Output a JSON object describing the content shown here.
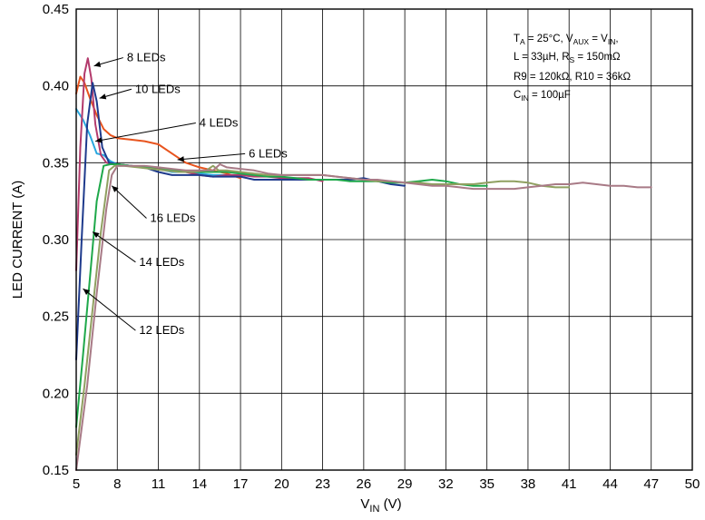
{
  "chart_data": {
    "type": "line",
    "title": "",
    "xlabel": "V",
    "xlabel_sub": "IN",
    "xlabel_unit": " (V)",
    "ylabel": "LED CURRENT (A)",
    "xlim": [
      5,
      50
    ],
    "ylim": [
      0.15,
      0.45
    ],
    "x_ticks": [
      "5",
      "8",
      "11",
      "14",
      "17",
      "20",
      "23",
      "26",
      "29",
      "32",
      "35",
      "38",
      "41",
      "44",
      "47",
      "50"
    ],
    "y_ticks": [
      "0.15",
      "0.20",
      "0.25",
      "0.30",
      "0.35",
      "0.40",
      "0.45"
    ],
    "grid": true,
    "conditions": {
      "line1": {
        "a": "T",
        "a_sub": "A",
        "b": " = 25°C, V",
        "b_sub": "AUX",
        "c": " = V",
        "c_sub": "IN",
        "d": ","
      },
      "line2": {
        "a": "L = 33µH, R",
        "a_sub": "S",
        "b": " = 150mΩ"
      },
      "line3": {
        "a": "R9 = 120kΩ, R10 = 36kΩ"
      },
      "line4": {
        "a": "C",
        "a_sub": "IN",
        "b": " = 100µF"
      }
    },
    "series": [
      {
        "name": "4 LEDs",
        "color": "#2aa7df",
        "label_x": 14.0,
        "label_y": 0.3735,
        "arrow_to_x": 6.4,
        "arrow_to_y": 0.364,
        "points": [
          [
            5.0,
            0.385
          ],
          [
            5.5,
            0.378
          ],
          [
            6.0,
            0.368
          ],
          [
            6.5,
            0.356
          ],
          [
            7.0,
            0.355
          ],
          [
            7.5,
            0.351
          ],
          [
            8.0,
            0.349
          ],
          [
            9.0,
            0.348
          ],
          [
            10.0,
            0.347
          ],
          [
            11.0,
            0.346
          ],
          [
            12.0,
            0.344
          ],
          [
            13.0,
            0.344
          ],
          [
            14.0,
            0.343
          ],
          [
            15.0,
            0.342
          ],
          [
            16.0,
            0.342
          ]
        ]
      },
      {
        "name": "6 LEDs",
        "color": "#e8541e",
        "label_x": 17.6,
        "label_y": 0.3535,
        "arrow_to_x": 12.4,
        "arrow_to_y": 0.352,
        "points": [
          [
            5.0,
            0.395
          ],
          [
            5.3,
            0.406
          ],
          [
            5.6,
            0.402
          ],
          [
            6.0,
            0.392
          ],
          [
            6.5,
            0.381
          ],
          [
            7.0,
            0.372
          ],
          [
            7.5,
            0.368
          ],
          [
            8.0,
            0.366
          ],
          [
            9.0,
            0.365
          ],
          [
            10.0,
            0.364
          ],
          [
            11.0,
            0.362
          ],
          [
            12.0,
            0.356
          ],
          [
            13.0,
            0.35
          ],
          [
            14.0,
            0.347
          ],
          [
            15.0,
            0.345
          ],
          [
            16.0,
            0.343
          ],
          [
            17.0,
            0.34
          ]
        ]
      },
      {
        "name": "8 LEDs",
        "color": "#b33a6c",
        "label_x": 8.7,
        "label_y": 0.416,
        "arrow_to_x": 6.3,
        "arrow_to_y": 0.413,
        "points": [
          [
            5.0,
            0.28
          ],
          [
            5.3,
            0.36
          ],
          [
            5.6,
            0.408
          ],
          [
            5.85,
            0.418
          ],
          [
            6.1,
            0.405
          ],
          [
            6.4,
            0.375
          ],
          [
            6.8,
            0.355
          ],
          [
            7.2,
            0.35
          ],
          [
            8.0,
            0.349
          ],
          [
            9.0,
            0.348
          ],
          [
            10.0,
            0.347
          ],
          [
            11.0,
            0.346
          ],
          [
            12.0,
            0.345
          ],
          [
            13.0,
            0.344
          ],
          [
            14.0,
            0.342
          ],
          [
            15.0,
            0.341
          ],
          [
            16.0,
            0.342
          ],
          [
            17.0,
            0.342
          ],
          [
            18.0,
            0.341
          ],
          [
            19.0,
            0.341
          ],
          [
            20.0,
            0.34
          ],
          [
            21.0,
            0.34
          ],
          [
            22.0,
            0.34
          ],
          [
            23.0,
            0.338
          ]
        ]
      },
      {
        "name": "10 LEDs",
        "color": "#1e3a8c",
        "label_x": 9.3,
        "label_y": 0.3955,
        "arrow_to_x": 6.7,
        "arrow_to_y": 0.392,
        "points": [
          [
            5.0,
            0.222
          ],
          [
            5.4,
            0.3
          ],
          [
            5.8,
            0.375
          ],
          [
            6.2,
            0.402
          ],
          [
            6.5,
            0.39
          ],
          [
            6.9,
            0.36
          ],
          [
            7.4,
            0.35
          ],
          [
            8.0,
            0.349
          ],
          [
            9.0,
            0.348
          ],
          [
            10.0,
            0.347
          ],
          [
            11.0,
            0.344
          ],
          [
            12.0,
            0.342
          ],
          [
            13.0,
            0.342
          ],
          [
            14.0,
            0.342
          ],
          [
            15.0,
            0.341
          ],
          [
            16.0,
            0.341
          ],
          [
            17.0,
            0.341
          ],
          [
            18.0,
            0.339
          ],
          [
            19.0,
            0.339
          ],
          [
            20.0,
            0.339
          ],
          [
            21.0,
            0.339
          ],
          [
            22.0,
            0.339
          ],
          [
            23.0,
            0.339
          ],
          [
            24.0,
            0.339
          ],
          [
            25.0,
            0.339
          ],
          [
            26.0,
            0.34
          ],
          [
            27.0,
            0.338
          ],
          [
            28.0,
            0.336
          ],
          [
            29.0,
            0.335
          ]
        ]
      },
      {
        "name": "12 LEDs",
        "color": "#1ea84a",
        "label_x": 9.6,
        "label_y": 0.2385,
        "arrow_to_x": 5.5,
        "arrow_to_y": 0.268,
        "points": [
          [
            5.0,
            0.178
          ],
          [
            5.5,
            0.225
          ],
          [
            6.0,
            0.275
          ],
          [
            6.5,
            0.325
          ],
          [
            7.0,
            0.348
          ],
          [
            7.5,
            0.349
          ],
          [
            8.0,
            0.349
          ],
          [
            9.0,
            0.348
          ],
          [
            10.0,
            0.347
          ],
          [
            11.0,
            0.347
          ],
          [
            12.0,
            0.345
          ],
          [
            13.0,
            0.344
          ],
          [
            14.0,
            0.344
          ],
          [
            15.0,
            0.344
          ],
          [
            16.0,
            0.344
          ],
          [
            17.0,
            0.343
          ],
          [
            18.0,
            0.342
          ],
          [
            19.0,
            0.341
          ],
          [
            20.0,
            0.341
          ],
          [
            21.0,
            0.34
          ],
          [
            22.0,
            0.339
          ],
          [
            23.0,
            0.339
          ],
          [
            24.0,
            0.339
          ],
          [
            25.0,
            0.338
          ],
          [
            26.0,
            0.338
          ],
          [
            27.0,
            0.338
          ],
          [
            28.0,
            0.337
          ],
          [
            29.0,
            0.337
          ],
          [
            30.0,
            0.338
          ],
          [
            31.0,
            0.339
          ],
          [
            32.0,
            0.338
          ],
          [
            33.0,
            0.336
          ],
          [
            34.0,
            0.335
          ],
          [
            35.0,
            0.335
          ]
        ]
      },
      {
        "name": "14 LEDs",
        "color": "#8fa060",
        "label_x": 9.6,
        "label_y": 0.283,
        "arrow_to_x": 6.2,
        "arrow_to_y": 0.305,
        "points": [
          [
            5.0,
            0.16
          ],
          [
            5.6,
            0.205
          ],
          [
            6.2,
            0.255
          ],
          [
            6.8,
            0.305
          ],
          [
            7.4,
            0.345
          ],
          [
            7.8,
            0.348
          ],
          [
            8.5,
            0.348
          ],
          [
            9.5,
            0.347
          ],
          [
            10.5,
            0.346
          ],
          [
            11.5,
            0.345
          ],
          [
            12.5,
            0.344
          ],
          [
            13.5,
            0.344
          ],
          [
            14.5,
            0.345
          ],
          [
            15.0,
            0.348
          ],
          [
            15.4,
            0.345
          ],
          [
            16.0,
            0.345
          ],
          [
            17.0,
            0.344
          ],
          [
            18.0,
            0.343
          ],
          [
            19.0,
            0.342
          ],
          [
            20.0,
            0.342
          ],
          [
            21.0,
            0.342
          ],
          [
            22.0,
            0.342
          ],
          [
            23.0,
            0.342
          ],
          [
            24.0,
            0.341
          ],
          [
            25.0,
            0.34
          ],
          [
            26.0,
            0.339
          ],
          [
            27.0,
            0.338
          ],
          [
            28.0,
            0.338
          ],
          [
            29.0,
            0.337
          ],
          [
            30.0,
            0.337
          ],
          [
            31.0,
            0.336
          ],
          [
            32.0,
            0.336
          ],
          [
            33.0,
            0.336
          ],
          [
            34.0,
            0.336
          ],
          [
            35.0,
            0.337
          ],
          [
            36.0,
            0.338
          ],
          [
            37.0,
            0.338
          ],
          [
            38.0,
            0.337
          ],
          [
            39.0,
            0.335
          ],
          [
            40.0,
            0.334
          ],
          [
            41.0,
            0.334
          ]
        ]
      },
      {
        "name": "16 LEDs",
        "color": "#a87a86",
        "label_x": 10.4,
        "label_y": 0.3115,
        "arrow_to_x": 7.6,
        "arrow_to_y": 0.335,
        "points": [
          [
            5.0,
            0.15
          ],
          [
            5.8,
            0.205
          ],
          [
            6.5,
            0.265
          ],
          [
            7.2,
            0.32
          ],
          [
            7.6,
            0.342
          ],
          [
            8.0,
            0.348
          ],
          [
            9.0,
            0.348
          ],
          [
            10.0,
            0.348
          ],
          [
            11.0,
            0.347
          ],
          [
            12.0,
            0.346
          ],
          [
            13.0,
            0.345
          ],
          [
            14.0,
            0.345
          ],
          [
            15.0,
            0.345
          ],
          [
            15.5,
            0.349
          ],
          [
            16.0,
            0.347
          ],
          [
            17.0,
            0.346
          ],
          [
            18.0,
            0.345
          ],
          [
            19.0,
            0.343
          ],
          [
            20.0,
            0.342
          ],
          [
            21.0,
            0.342
          ],
          [
            22.0,
            0.342
          ],
          [
            23.0,
            0.342
          ],
          [
            24.0,
            0.341
          ],
          [
            25.0,
            0.34
          ],
          [
            26.0,
            0.339
          ],
          [
            27.0,
            0.339
          ],
          [
            28.0,
            0.338
          ],
          [
            29.0,
            0.337
          ],
          [
            30.0,
            0.336
          ],
          [
            31.0,
            0.335
          ],
          [
            32.0,
            0.335
          ],
          [
            33.0,
            0.334
          ],
          [
            34.0,
            0.333
          ],
          [
            35.0,
            0.333
          ],
          [
            36.0,
            0.333
          ],
          [
            37.0,
            0.333
          ],
          [
            38.0,
            0.334
          ],
          [
            39.0,
            0.335
          ],
          [
            40.0,
            0.336
          ],
          [
            41.0,
            0.336
          ],
          [
            42.0,
            0.337
          ],
          [
            43.0,
            0.336
          ],
          [
            44.0,
            0.335
          ],
          [
            45.0,
            0.335
          ],
          [
            46.0,
            0.334
          ],
          [
            47.0,
            0.334
          ]
        ]
      }
    ]
  }
}
